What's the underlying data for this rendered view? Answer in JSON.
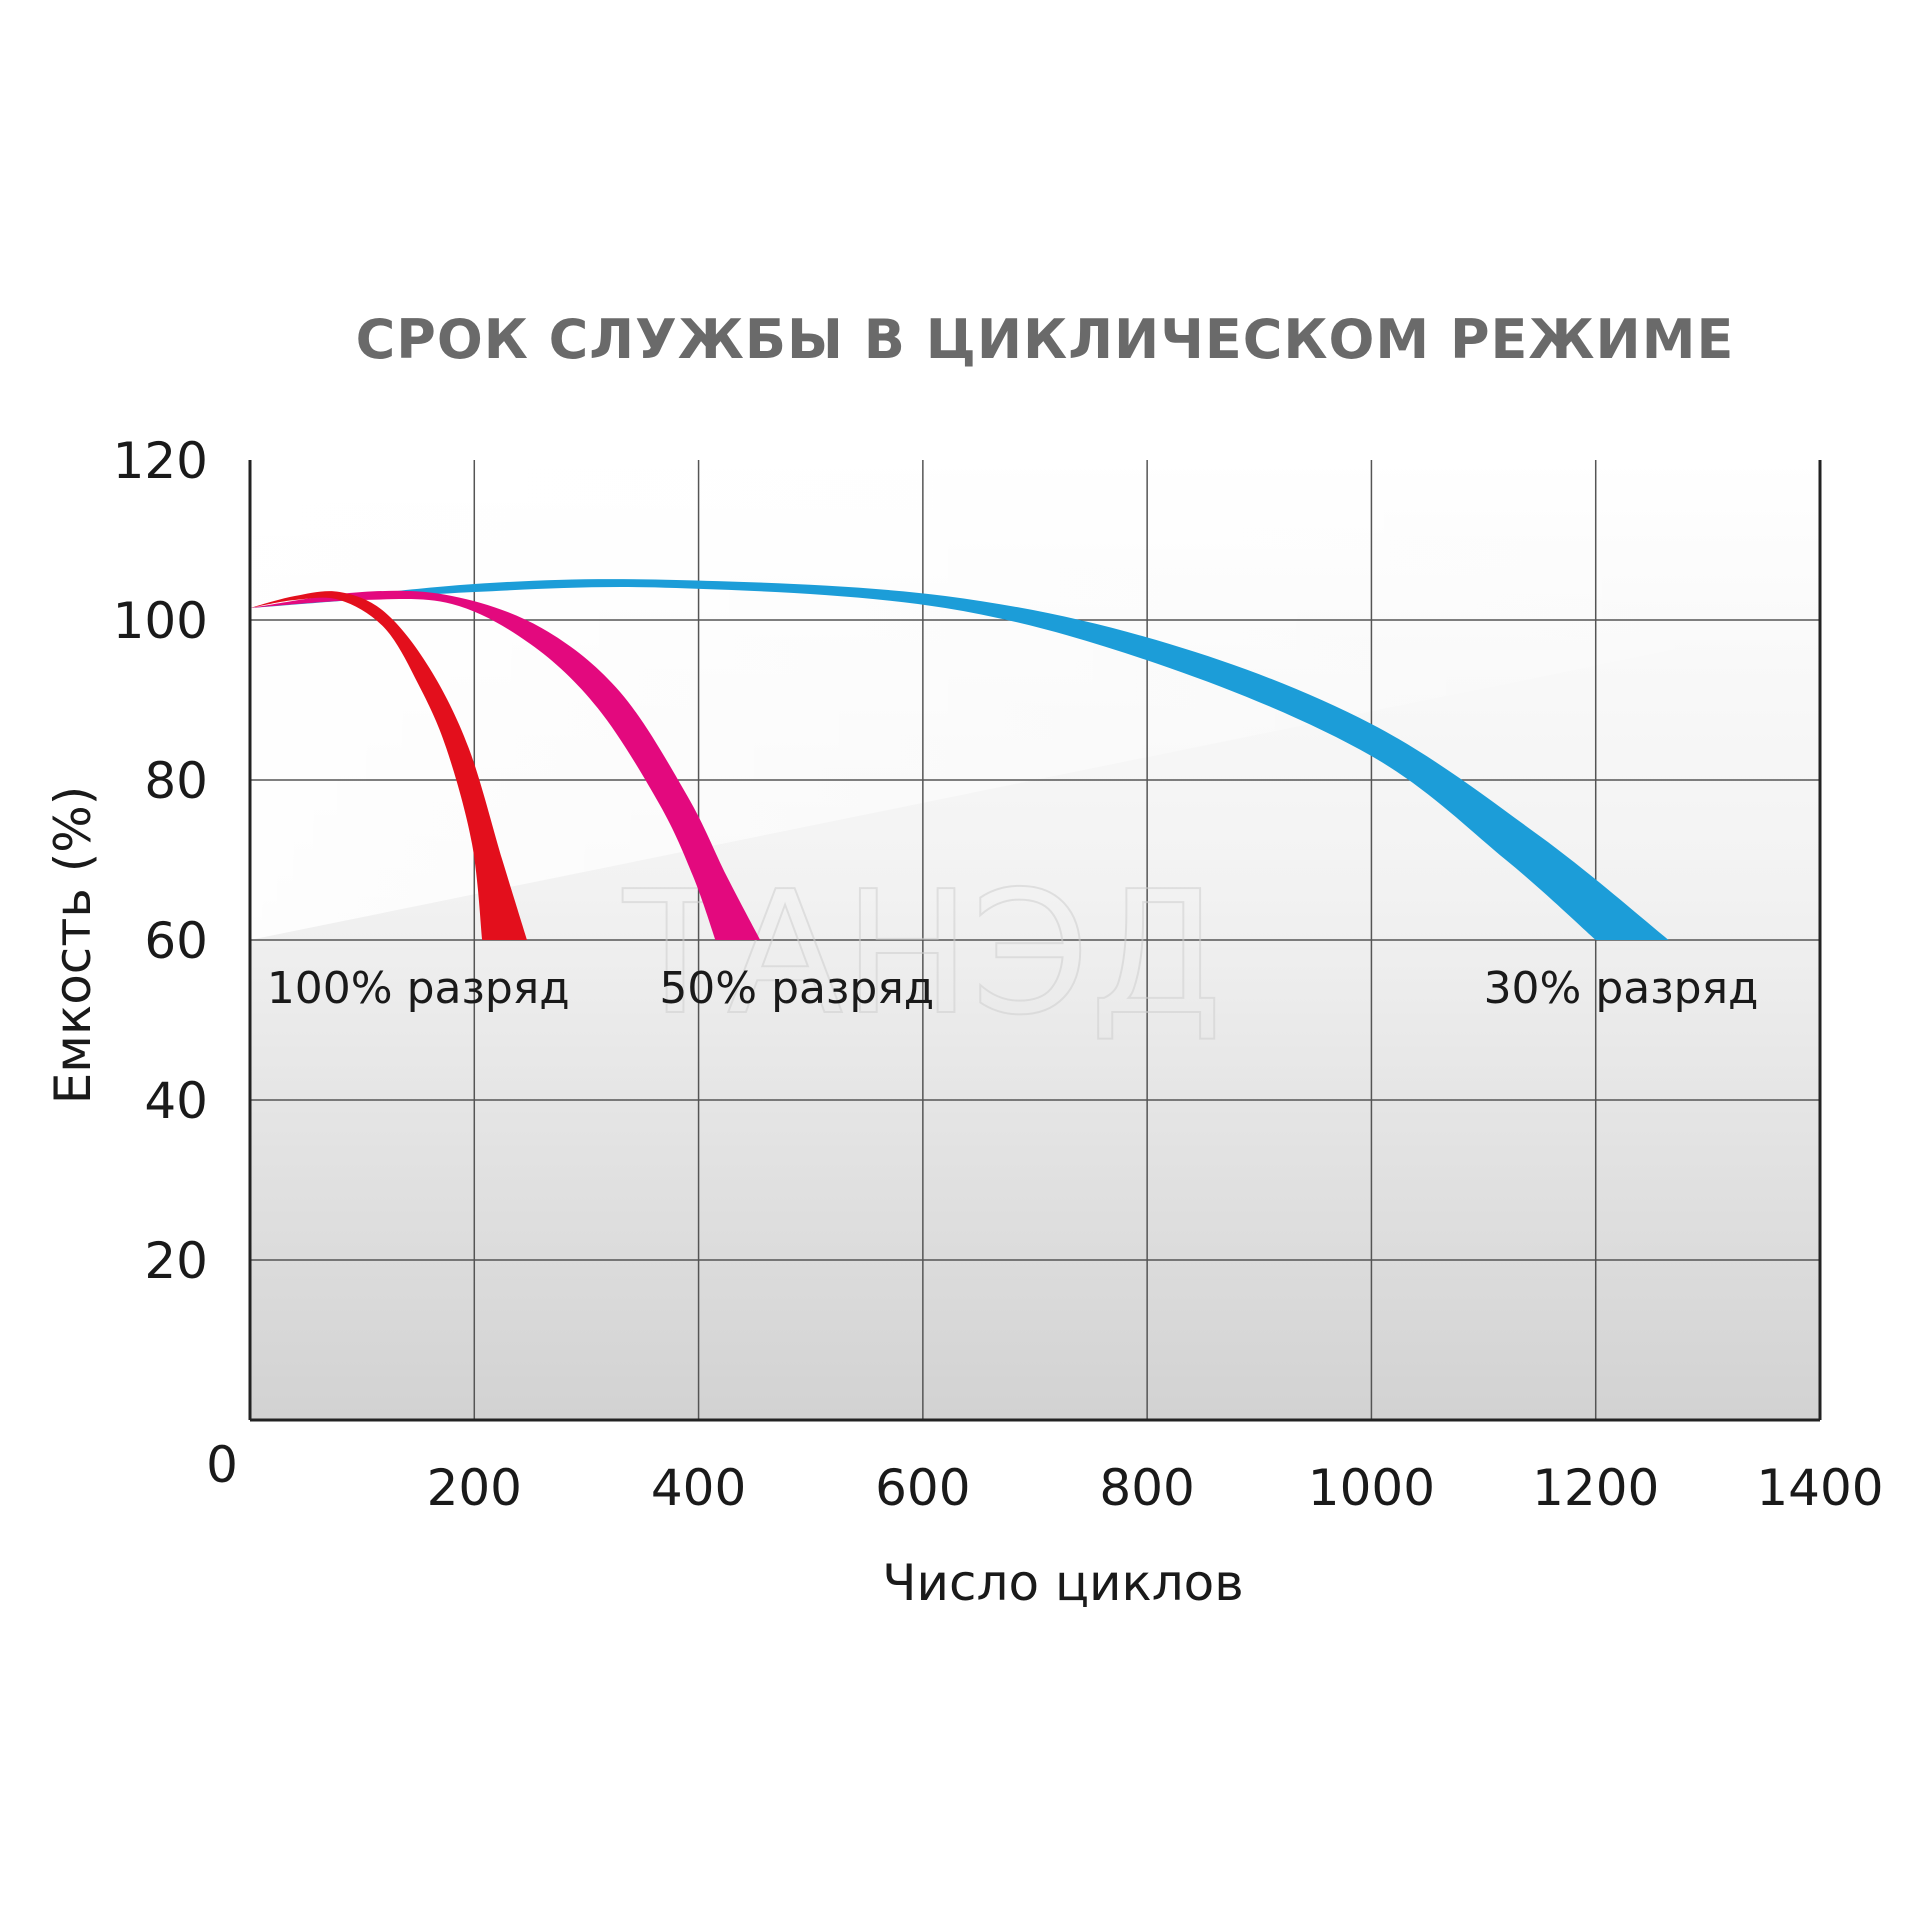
{
  "chart_data": {
    "type": "line",
    "title": "СРОК СЛУЖБЫ В ЦИКЛИЧЕСКОМ РЕЖИМЕ",
    "xlabel": "Число циклов",
    "ylabel": "Емкость (%)",
    "xlim": [
      0,
      1400
    ],
    "ylim": [
      0,
      120
    ],
    "x_ticks": [
      "0",
      "200",
      "400",
      "600",
      "800",
      "1000",
      "1200",
      "1400"
    ],
    "y_ticks": [
      "20",
      "40",
      "60",
      "80",
      "100",
      "120"
    ],
    "grid": true,
    "watermark": "ТАНЭД",
    "series": [
      {
        "name": "100% разряд",
        "color": "#e30f1c",
        "upper": [
          [
            0,
            101.5
          ],
          [
            40,
            103
          ],
          [
            80,
            103.5
          ],
          [
            120,
            101
          ],
          [
            160,
            94
          ],
          [
            195,
            84
          ],
          [
            225,
            70
          ],
          [
            247,
            60
          ]
        ],
        "lower": [
          [
            0,
            101.5
          ],
          [
            40,
            102.5
          ],
          [
            80,
            102.5
          ],
          [
            120,
            99
          ],
          [
            150,
            92
          ],
          [
            175,
            84
          ],
          [
            198,
            72
          ],
          [
            207,
            60
          ]
        ]
      },
      {
        "name": "50% разряд",
        "color": "#e3097e",
        "upper": [
          [
            0,
            101.5
          ],
          [
            100,
            103.5
          ],
          [
            180,
            103
          ],
          [
            260,
            99
          ],
          [
            330,
            91
          ],
          [
            390,
            78
          ],
          [
            425,
            68
          ],
          [
            455,
            60
          ]
        ],
        "lower": [
          [
            0,
            101.5
          ],
          [
            100,
            102.5
          ],
          [
            180,
            102
          ],
          [
            250,
            97
          ],
          [
            310,
            89
          ],
          [
            365,
            77
          ],
          [
            395,
            68
          ],
          [
            415,
            60
          ]
        ]
      },
      {
        "name": "30% разряд",
        "color": "#1c9dd8",
        "upper": [
          [
            0,
            101.5
          ],
          [
            200,
            104.5
          ],
          [
            380,
            105
          ],
          [
            620,
            103
          ],
          [
            820,
            97
          ],
          [
            1000,
            87
          ],
          [
            1150,
            73
          ],
          [
            1265,
            60
          ]
        ],
        "lower": [
          [
            0,
            101.5
          ],
          [
            200,
            103.5
          ],
          [
            380,
            104
          ],
          [
            620,
            101.5
          ],
          [
            820,
            94
          ],
          [
            1000,
            83
          ],
          [
            1120,
            70
          ],
          [
            1200,
            60
          ]
        ]
      }
    ],
    "series_labels_at": [
      {
        "name": "100% разряд",
        "x": 15,
        "y": 54
      },
      {
        "name": "50% разряд",
        "x": 365,
        "y": 54
      },
      {
        "name": "30% разряд",
        "x": 1100,
        "y": 54
      }
    ]
  }
}
